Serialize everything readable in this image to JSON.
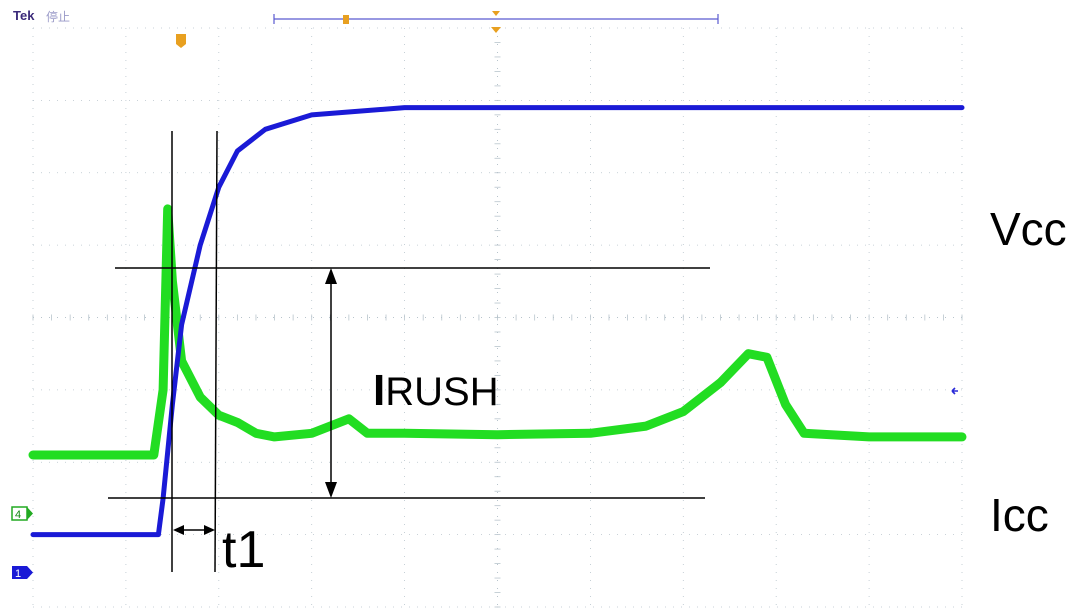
{
  "header": {
    "brand": "Tek",
    "status": "停止"
  },
  "channels": {
    "ch4_marker": "4",
    "ch1_marker": "1"
  },
  "labels": {
    "vcc": "Vcc",
    "icc": "Icc",
    "t1": "t1",
    "irush_main": "I",
    "irush_sub": "RUSH"
  },
  "colors": {
    "vcc_trace": "#1a1ad6",
    "icc_trace": "#22dd22",
    "grid": "#b8c4cc",
    "annotation": "#000000",
    "trigger": "#e8a020"
  },
  "chart_data": {
    "type": "line",
    "title": "",
    "xlabel": "",
    "ylabel": "",
    "grid": true,
    "x_divisions": 10,
    "y_divisions": 8,
    "series": [
      {
        "name": "Vcc",
        "x": [
          0,
          1.2,
          1.35,
          1.4,
          1.5,
          1.6,
          1.8,
          2.0,
          2.2,
          2.5,
          3.0,
          4.0,
          6.0,
          8.0,
          10.0
        ],
        "y": [
          -3.0,
          -3.0,
          -3.0,
          -2.5,
          -1.2,
          -0.1,
          1.0,
          1.8,
          2.3,
          2.6,
          2.8,
          2.9,
          2.9,
          2.9,
          2.9
        ]
      },
      {
        "name": "Icc",
        "x": [
          0,
          1.3,
          1.4,
          1.45,
          1.5,
          1.6,
          1.8,
          2.0,
          2.2,
          2.4,
          2.6,
          3.0,
          3.4,
          3.6,
          4.0,
          5.0,
          6.0,
          6.6,
          7.0,
          7.4,
          7.7,
          7.9,
          8.1,
          8.3,
          9.0,
          10.0
        ],
        "y": [
          -1.9,
          -1.9,
          -1.0,
          1.5,
          0.5,
          -0.6,
          -1.1,
          -1.35,
          -1.45,
          -1.6,
          -1.65,
          -1.6,
          -1.4,
          -1.6,
          -1.6,
          -1.62,
          -1.6,
          -1.5,
          -1.3,
          -0.9,
          -0.5,
          -0.55,
          -1.2,
          -1.6,
          -1.65,
          -1.65
        ]
      }
    ],
    "annotations": {
      "irush_top_level": 1.55,
      "irush_bottom_level": -1.7,
      "t1_start": 1.4,
      "t1_end": 1.87
    }
  }
}
